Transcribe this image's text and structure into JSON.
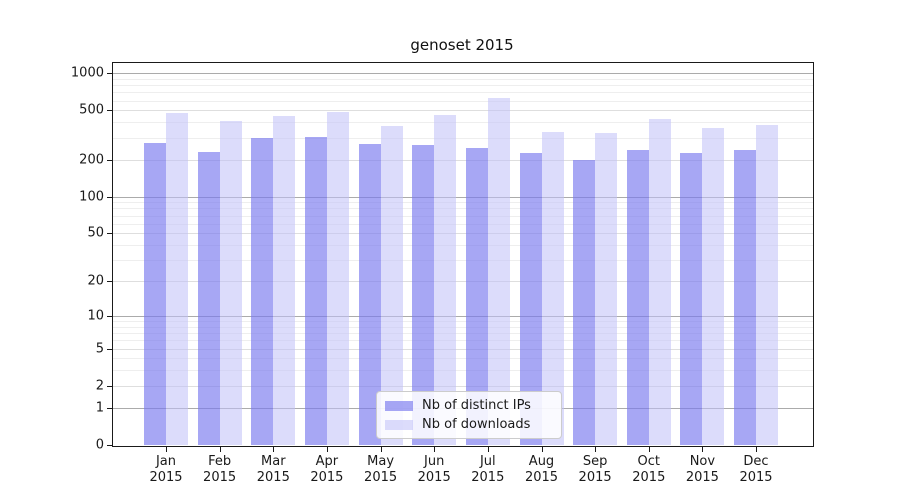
{
  "chart_data": {
    "type": "bar",
    "title": "genoset 2015",
    "categories": [
      "Jan",
      "Feb",
      "Mar",
      "Apr",
      "May",
      "Jun",
      "Jul",
      "Aug",
      "Sep",
      "Oct",
      "Nov",
      "Dec"
    ],
    "year_label": "2015",
    "series": [
      {
        "key": "distinct-ips",
        "name": "Nb of distinct IPs",
        "color": "#a8a8f3",
        "fill_rgba": "rgba(122, 122, 238, 0.66)",
        "values": [
          271,
          230,
          298,
          302,
          268,
          261,
          246,
          225,
          200,
          239,
          227,
          239
        ]
      },
      {
        "key": "downloads",
        "name": "Nb of downloads",
        "color": "#dcdcf9",
        "fill_rgba": "rgba(193, 193, 247, 0.56)",
        "values": [
          473,
          411,
          448,
          488,
          375,
          462,
          627,
          337,
          331,
          424,
          363,
          384
        ]
      }
    ],
    "yscale": "log1p",
    "ylim": [
      0,
      1205
    ],
    "yticks": [
      1000,
      500,
      200,
      100,
      50,
      20,
      10,
      5,
      2,
      1,
      0
    ],
    "ytick_styles": {
      "major": [
        1000,
        100,
        10,
        1
      ],
      "mid": [
        500,
        200,
        50,
        20,
        5,
        2
      ]
    },
    "grid": "horizontal",
    "legend_position": "lower center",
    "axis_color": "#1a1a1a"
  }
}
